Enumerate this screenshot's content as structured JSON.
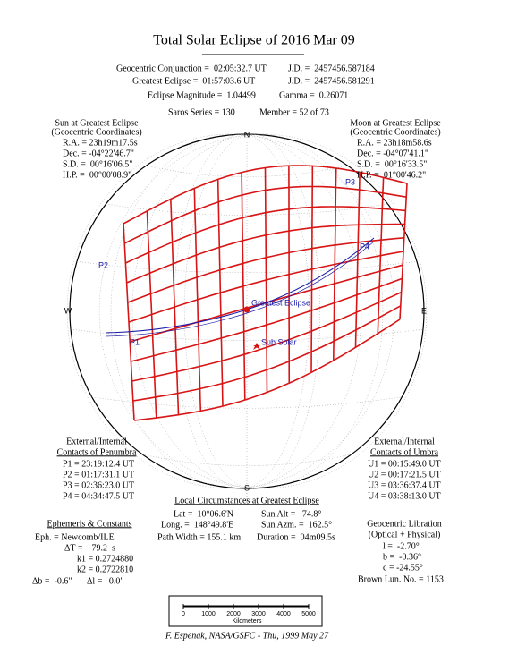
{
  "header": {
    "title": "Total Solar Eclipse of 2016 Mar 09",
    "conjunction": "Geocentric Conjunction =  02:05:32.7 UT",
    "conjunction_jd": "J.D. =  2457456.587184",
    "greatest": "Greatest Eclipse =  01:57:03.6 UT",
    "greatest_jd": "J.D. =  2457456.581291",
    "magnitude": "Eclipse Magnitude =  1.04499",
    "gamma": "Gamma =  0.26071",
    "saros": "Saros Series = 130",
    "member": "Member = 52 of 73"
  },
  "sun": {
    "title": "Sun at Greatest Eclipse",
    "subtitle": "(Geocentric Coordinates)",
    "lines": [
      "R.A. = 23h19m17.5s",
      "Dec. = -04°22'46.7\"",
      "S.D. =  00°16'06.5\"",
      "H.P. =  00°00'08.9\""
    ]
  },
  "moon": {
    "title": "Moon at Greatest Eclipse",
    "subtitle": "(Geocentric Coordinates)",
    "lines": [
      "R.A. = 23h18m58.6s",
      "Dec. = -04°07'41.1\"",
      "S.D. =  00°16'33.5\"",
      "H.P. =  01°00'46.2\""
    ]
  },
  "map": {
    "north": "N",
    "south": "S",
    "west": "W",
    "east": "E",
    "p1": "P1",
    "p2": "P2",
    "p3": "P3",
    "p4": "P4",
    "greatest": "Greatest Eclipse",
    "sub_solar": "Sub Solar"
  },
  "penumbra": {
    "title": "External/Internal",
    "subtitle": "Contacts of Penumbra",
    "lines": [
      "P1 = 23:19:12.4 UT",
      "P2 = 01:17:31.1 UT",
      "P3 = 02:36:23.0 UT",
      "P4 = 04:34:47.5 UT"
    ]
  },
  "umbra": {
    "title": "External/Internal",
    "subtitle": "Contacts of Umbra",
    "lines": [
      "U1 = 00:15:49.0 UT",
      "U2 = 00:17:21.5 UT",
      "U3 = 03:36:37.4 UT",
      "U4 = 03:38:13.0 UT"
    ]
  },
  "local": {
    "title": "Local Circumstances at Greatest Eclipse",
    "lat": "Lat =  10°06.6'N",
    "sun_alt": "Sun Alt =   74.8°",
    "long": "Long. =  148°49.8'E",
    "sun_azm": "Sun Azm. =  162.5°",
    "path_width": "Path Width = 155.1 km",
    "duration": "Duration =  04m09.5s"
  },
  "ephemeris": {
    "title": "Ephemeris & Constants",
    "eph": "Eph. = Newcomb/ILE",
    "delta_t": "ΔT =    79.2  s",
    "k1": "k1 = 0.2724880",
    "k2": "k2 = 0.2722810",
    "delta_b": "Δb =  -0.6\"",
    "delta_l": "Δl =   0.0\""
  },
  "libration": {
    "title": "Geocentric Libration",
    "subtitle": "(Optical + Physical)",
    "l": "l =  -2.70°",
    "b": "b =  -0.36°",
    "c": "c = -24.55°",
    "brown": "Brown Lun. No. = 1153"
  },
  "scale": {
    "ticks": [
      "0",
      "1000",
      "2000",
      "3000",
      "4000",
      "5000"
    ],
    "label": "Kilometers"
  },
  "footer": "F. Espenak, NASA/GSFC - Thu, 1999 May 27"
}
